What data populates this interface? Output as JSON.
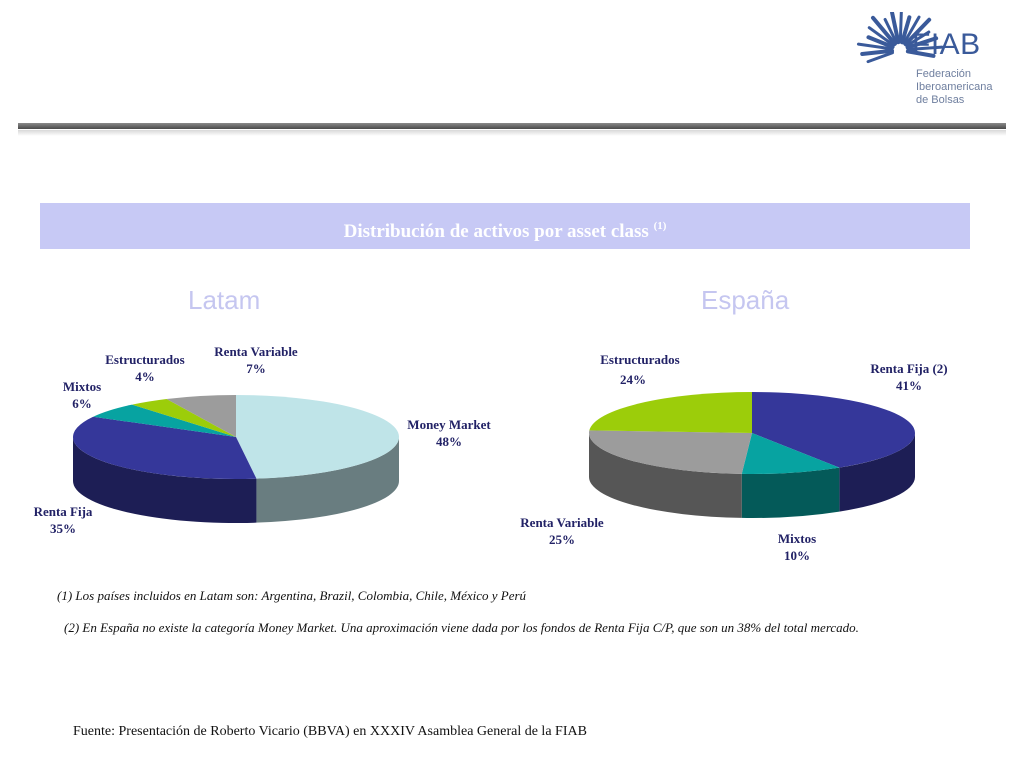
{
  "header": {
    "logo_name": "FIAB",
    "logo_sub": [
      "Federación",
      "Iberoamericana",
      "de Bolsas"
    ]
  },
  "banner": {
    "title": "Distribución de activos por asset class",
    "footnote_ref": "(1)"
  },
  "chart_data": [
    {
      "type": "pie",
      "title": "Latam",
      "slices": [
        {
          "label": "Money Market",
          "value": 48,
          "value_label": "48%",
          "color": "#bfe4e8"
        },
        {
          "label": "Renta Fija",
          "value": 35,
          "value_label": "35%",
          "color": "#35379a"
        },
        {
          "label": "Mixtos",
          "value": 6,
          "value_label": "6%",
          "color": "#07a3a1"
        },
        {
          "label": "Estructurados",
          "value": 4,
          "value_label": "4%",
          "color": "#9ccd0a"
        },
        {
          "label": "Renta Variable",
          "value": 7,
          "value_label": "7%",
          "color": "#9c9c9c"
        }
      ]
    },
    {
      "type": "pie",
      "title": "España",
      "slices": [
        {
          "label": "Renta Fija (2)",
          "value": 41,
          "value_label": "41%",
          "color": "#35379a"
        },
        {
          "label": "Mixtos",
          "value": 10,
          "value_label": "10%",
          "color": "#07a3a1"
        },
        {
          "label": "Renta Variable",
          "value": 25,
          "value_label": "25%",
          "color": "#9c9c9c"
        },
        {
          "label": "Estructurados",
          "value": 24,
          "value_label": "24%",
          "color": "#9ccd0a"
        }
      ]
    }
  ],
  "notes": {
    "note1": "(1) Los países incluidos en Latam son: Argentina, Brazil, Colombia, Chile, México y Perú",
    "note2": "(2) En España no existe la categoría Money Market. Una aproximación viene dada por los fondos de Renta Fija C/P, que son un 38% del total mercado."
  },
  "source": "Fuente: Presentación de Roberto Vicario  (BBVA) en XXXIV Asamblea General de la FIAB"
}
